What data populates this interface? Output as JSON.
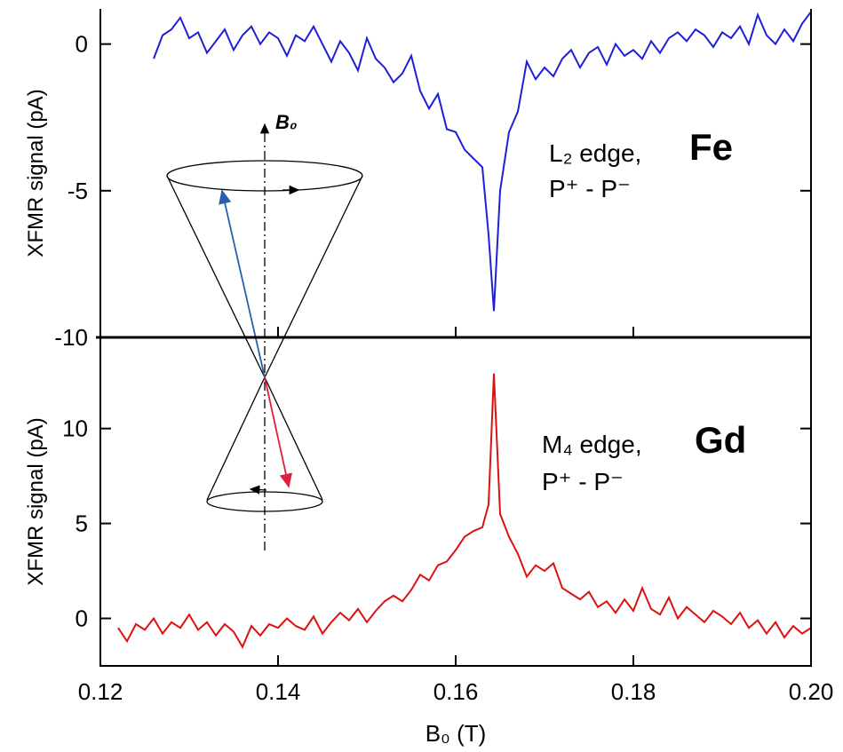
{
  "chart_data": [
    {
      "type": "line",
      "ylabel": "XFMR signal (pA)",
      "ylim": [
        -10,
        1.2
      ],
      "yticks": [
        0,
        -5,
        -10
      ],
      "annotations": [
        "B₀",
        "L₂ edge,",
        "Fe",
        "P⁺ - P⁻"
      ],
      "annotation_colors": [
        "#000000",
        "#000000",
        "#1f1fd6",
        "#000000"
      ],
      "x": [
        0.126,
        0.127,
        0.128,
        0.129,
        0.13,
        0.131,
        0.132,
        0.133,
        0.134,
        0.135,
        0.136,
        0.137,
        0.138,
        0.139,
        0.14,
        0.141,
        0.142,
        0.143,
        0.144,
        0.145,
        0.146,
        0.147,
        0.148,
        0.149,
        0.15,
        0.151,
        0.152,
        0.153,
        0.154,
        0.155,
        0.156,
        0.157,
        0.158,
        0.159,
        0.16,
        0.161,
        0.162,
        0.163,
        0.1637,
        0.1643,
        0.165,
        0.166,
        0.167,
        0.168,
        0.169,
        0.17,
        0.171,
        0.172,
        0.173,
        0.174,
        0.175,
        0.176,
        0.177,
        0.178,
        0.179,
        0.18,
        0.181,
        0.182,
        0.183,
        0.184,
        0.185,
        0.186,
        0.187,
        0.188,
        0.189,
        0.19,
        0.191,
        0.192,
        0.193,
        0.194,
        0.195,
        0.196,
        0.197,
        0.198,
        0.199,
        0.2
      ],
      "series": [
        {
          "color": "#1f1fd6",
          "values": [
            -0.5,
            0.3,
            0.5,
            0.9,
            0.2,
            0.4,
            -0.3,
            0.1,
            0.5,
            -0.2,
            0.3,
            0.6,
            0.0,
            0.4,
            0.2,
            -0.4,
            0.3,
            0.1,
            0.6,
            0.0,
            -0.6,
            0.1,
            -0.3,
            -0.9,
            0.2,
            -0.5,
            -0.8,
            -1.3,
            -1.0,
            -0.4,
            -1.6,
            -2.2,
            -1.7,
            -2.9,
            -3.0,
            -3.6,
            -3.9,
            -4.2,
            -6.5,
            -9.1,
            -5.0,
            -3.0,
            -2.3,
            -0.6,
            -1.2,
            -0.8,
            -1.1,
            -0.5,
            -0.2,
            -0.8,
            -0.3,
            -0.1,
            -0.7,
            0.0,
            -0.4,
            -0.2,
            -0.5,
            0.1,
            -0.3,
            0.2,
            0.4,
            0.1,
            0.5,
            0.3,
            -0.1,
            0.4,
            0.2,
            0.6,
            0.0,
            1.0,
            0.3,
            0.0,
            0.5,
            0.1,
            0.7,
            1.1
          ]
        }
      ]
    },
    {
      "type": "line",
      "ylabel": "XFMR signal (pA)",
      "xlabel": "B₀ (T)",
      "ylim": [
        -2.5,
        14.8
      ],
      "yticks": [
        0,
        5,
        10
      ],
      "xlim": [
        0.12,
        0.2
      ],
      "xticks": [
        0.12,
        0.14,
        0.16,
        0.18,
        {
          "value": 0.2,
          "label": "0.20"
        }
      ],
      "annotations": [
        "M₄ edge,",
        "Gd",
        "P⁺ - P⁻"
      ],
      "annotation_colors": [
        "#000000",
        "#cc1111",
        "#000000"
      ],
      "x": [
        0.122,
        0.123,
        0.124,
        0.125,
        0.126,
        0.127,
        0.128,
        0.129,
        0.13,
        0.131,
        0.132,
        0.133,
        0.134,
        0.135,
        0.136,
        0.137,
        0.138,
        0.139,
        0.14,
        0.141,
        0.142,
        0.143,
        0.144,
        0.145,
        0.146,
        0.147,
        0.148,
        0.149,
        0.15,
        0.151,
        0.152,
        0.153,
        0.154,
        0.155,
        0.156,
        0.157,
        0.158,
        0.159,
        0.16,
        0.161,
        0.162,
        0.163,
        0.1637,
        0.1643,
        0.165,
        0.166,
        0.167,
        0.168,
        0.169,
        0.17,
        0.171,
        0.172,
        0.173,
        0.174,
        0.175,
        0.176,
        0.177,
        0.178,
        0.179,
        0.18,
        0.181,
        0.182,
        0.183,
        0.184,
        0.185,
        0.186,
        0.187,
        0.188,
        0.189,
        0.19,
        0.191,
        0.192,
        0.193,
        0.194,
        0.195,
        0.196,
        0.197,
        0.198,
        0.199,
        0.2
      ],
      "series": [
        {
          "color": "#dd1111",
          "values": [
            -0.5,
            -1.2,
            -0.3,
            -0.6,
            0.0,
            -0.8,
            -0.2,
            -0.5,
            0.2,
            -0.6,
            -0.2,
            -0.9,
            -0.3,
            -0.7,
            -1.5,
            -0.4,
            -0.9,
            -0.3,
            -0.5,
            0.0,
            -0.4,
            -0.6,
            0.1,
            -0.8,
            -0.2,
            0.3,
            -0.1,
            0.5,
            -0.2,
            0.4,
            0.9,
            1.2,
            0.9,
            1.5,
            2.3,
            2.0,
            2.8,
            3.0,
            3.6,
            4.3,
            4.6,
            4.8,
            6.0,
            12.9,
            5.5,
            4.3,
            3.4,
            2.2,
            2.8,
            2.5,
            2.9,
            1.6,
            1.3,
            1.0,
            1.4,
            0.6,
            0.9,
            0.3,
            1.0,
            0.4,
            1.6,
            0.5,
            0.2,
            1.1,
            0.0,
            0.6,
            0.2,
            -0.2,
            0.4,
            0.1,
            -0.3,
            0.3,
            -0.5,
            -0.1,
            -0.8,
            -0.2,
            -1.0,
            -0.4,
            -0.8,
            -0.5
          ]
        }
      ]
    }
  ]
}
